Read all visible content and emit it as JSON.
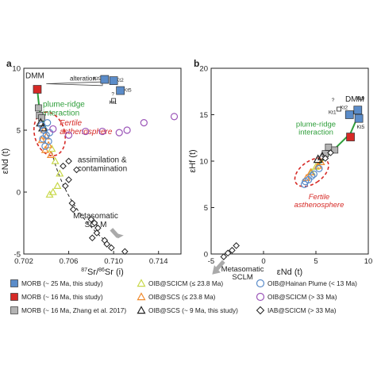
{
  "colors": {
    "morb_25": "#5b8cc9",
    "morb_16": "#d62a26",
    "morb_zhang": "#b3b3b3",
    "oib_scicm_le23": "#c8d84a",
    "oib_scs_le23": "#f08a2d",
    "oib_scs_9": "#222222",
    "oib_hainan": "#5b8cc9",
    "oib_scicm_gt33": "#9b55b8",
    "iab_scicm": "#222222",
    "fertile": "#d62a26",
    "plume": "#2e9e3a",
    "dashed_envelope": "#d62a26"
  },
  "panels": [
    {
      "tag": "a",
      "ylabel": "εNd (t)",
      "xlabel": "87Sr/86Sr (i)",
      "xticks": [
        "0.702",
        "0.706",
        "0.710",
        "0.714"
      ],
      "yticks": [
        "10",
        "5",
        "0",
        "-5"
      ],
      "annotations": {
        "dmm": "DMM",
        "alteration": "alteration",
        "plume_ridge": "plume-ridge\ninteraction",
        "fertile": "Fertile\nasthenosphere",
        "assimilation": "assimilation &\ncontamination",
        "metasomatic": "Metasomatic\nSCLM",
        "kt9": "Kt9",
        "kt2": "Kt2",
        "kt5": "Kt5",
        "kt1": "Kt1",
        "q": "?"
      }
    },
    {
      "tag": "b",
      "ylabel": "εHf (t)",
      "xlabel": "εNd (t)",
      "xticks": [
        "-5",
        "0",
        "5",
        "10"
      ],
      "yticks": [
        "20",
        "15",
        "10",
        "5",
        "0"
      ],
      "annotations": {
        "dmm": "DMM",
        "plume_ridge": "plume-ridge\ninteraction",
        "fertile": "Fertile\nasthenosphere",
        "metasomatic": "Metasomatic\nSCLM",
        "kt9": "Kt9",
        "kt2": "Kt2",
        "kt5": "Kt5",
        "kt1": "Kt1",
        "q": "?"
      }
    }
  ],
  "legend": [
    {
      "label": "MORB (~ 25 Ma, this study)",
      "marker": "square",
      "color_key": "morb_25",
      "filled": true
    },
    {
      "label": "OIB@SCICM (≤ 23.8 Ma)",
      "marker": "triangle",
      "color_key": "oib_scicm_le23",
      "filled": false
    },
    {
      "label": "OIB@Hainan Plume (< 13 Ma)",
      "marker": "circle",
      "color_key": "oib_hainan",
      "filled": false
    },
    {
      "label": "MORB (~ 16 Ma, this study)",
      "marker": "square",
      "color_key": "morb_16",
      "filled": true
    },
    {
      "label": "OIB@SCS (≤ 23.8 Ma)",
      "marker": "triangle",
      "color_key": "oib_scs_le23",
      "filled": false
    },
    {
      "label": "OIB@SCICM (> 33 Ma)",
      "marker": "circle",
      "color_key": "oib_scicm_gt33",
      "filled": false
    },
    {
      "label": "MORB (~ 16 Ma, Zhang et al. 2017)",
      "marker": "square",
      "color_key": "morb_zhang",
      "filled": true
    },
    {
      "label": "OIB@SCS (~ 9 Ma, this study)",
      "marker": "triangle",
      "color_key": "oib_scs_9",
      "filled": false
    },
    {
      "label": "IAB@SCICM (> 33 Ma)",
      "marker": "diamond",
      "color_key": "iab_scicm",
      "filled": false
    }
  ],
  "chart_data": [
    {
      "type": "scatter",
      "title": "",
      "xlabel": "87Sr/86Sr (i)",
      "ylabel": "εNd (t)",
      "xlim": [
        0.702,
        0.716
      ],
      "ylim": [
        -5,
        10
      ],
      "grid": false,
      "series": [
        {
          "name": "MORB (~ 25 Ma, this study)",
          "points": [
            [
              0.7092,
              9.1
            ],
            [
              0.71,
              9.0
            ],
            [
              0.7106,
              8.2
            ]
          ]
        },
        {
          "name": "MORB (~ 16 Ma, this study)",
          "points": [
            [
              0.7032,
              8.3
            ]
          ]
        },
        {
          "name": "MORB (~ 16 Ma, Zhang et al. 2017)",
          "points": [
            [
              0.7033,
              6.8
            ],
            [
              0.7034,
              6.2
            ],
            [
              0.7036,
              6.0
            ]
          ]
        },
        {
          "name": "OIB@SCICM (≤ 23.8 Ma)",
          "points": [
            [
              0.7045,
              3.5
            ],
            [
              0.7048,
              2.5
            ],
            [
              0.7052,
              1.5
            ],
            [
              0.705,
              0.5
            ],
            [
              0.7046,
              0.0
            ],
            [
              0.7043,
              -0.2
            ]
          ]
        },
        {
          "name": "OIB@SCS (≤ 23.8 Ma)",
          "points": [
            [
              0.7038,
              5.0
            ],
            [
              0.704,
              4.5
            ],
            [
              0.7042,
              3.8
            ],
            [
              0.7036,
              4.2
            ],
            [
              0.7044,
              3.0
            ],
            [
              0.7039,
              3.4
            ]
          ]
        },
        {
          "name": "OIB@SCS (~ 9 Ma, this study)",
          "points": [
            [
              0.7035,
              5.6
            ],
            [
              0.7037,
              5.2
            ]
          ]
        },
        {
          "name": "OIB@Hainan Plume (< 13 Ma)",
          "points": [
            [
              0.7036,
              5.4
            ],
            [
              0.7038,
              5.0
            ],
            [
              0.704,
              4.6
            ],
            [
              0.7042,
              4.1
            ],
            [
              0.7039,
              3.7
            ],
            [
              0.7043,
              4.8
            ],
            [
              0.7041,
              5.6
            ],
            [
              0.7037,
              4.3
            ]
          ]
        },
        {
          "name": "OIB@SCICM (> 33 Ma)",
          "points": [
            [
              0.7046,
              5.1
            ],
            [
              0.706,
              4.6
            ],
            [
              0.7075,
              4.9
            ],
            [
              0.709,
              4.9
            ],
            [
              0.7105,
              4.8
            ],
            [
              0.7112,
              5.0
            ],
            [
              0.7127,
              5.6
            ],
            [
              0.7154,
              6.1
            ]
          ]
        },
        {
          "name": "IAB@SCICM (> 33 Ma)",
          "points": [
            [
              0.706,
              2.5
            ],
            [
              0.7067,
              1.8
            ],
            [
              0.7055,
              2.1
            ],
            [
              0.706,
              1.0
            ],
            [
              0.7057,
              0.5
            ],
            [
              0.7063,
              -0.9
            ],
            [
              0.708,
              -2.2
            ],
            [
              0.7083,
              -2.5
            ],
            [
              0.7086,
              -2.9
            ],
            [
              0.7085,
              -3.3
            ],
            [
              0.7081,
              -3.7
            ],
            [
              0.7092,
              -3.9
            ],
            [
              0.7094,
              -4.2
            ],
            [
              0.7098,
              -4.5
            ],
            [
              0.711,
              -4.8
            ],
            [
              0.7064,
              -1.4
            ]
          ]
        }
      ]
    },
    {
      "type": "scatter",
      "title": "",
      "xlabel": "εNd (t)",
      "ylabel": "εHf (t)",
      "xlim": [
        -5,
        10
      ],
      "ylim": [
        0,
        20
      ],
      "grid": false,
      "series": [
        {
          "name": "MORB (~ 25 Ma, this study)",
          "points": [
            [
              8.2,
              15.0
            ],
            [
              9.0,
              15.5
            ],
            [
              9.1,
              14.6
            ]
          ]
        },
        {
          "name": "MORB (~ 16 Ma, this study)",
          "points": [
            [
              8.3,
              12.6
            ]
          ]
        },
        {
          "name": "MORB (~ 16 Ma, Zhang et al. 2017)",
          "points": [
            [
              6.2,
              11.5
            ],
            [
              6.8,
              11.2
            ],
            [
              5.9,
              10.8
            ]
          ]
        },
        {
          "name": "OIB@SCICM (≤ 23.8 Ma)",
          "points": [
            [
              4.6,
              8.8
            ],
            [
              5.0,
              9.4
            ]
          ]
        },
        {
          "name": "OIB@SCS (≤ 23.8 Ma)",
          "points": [
            [
              4.1,
              8.2
            ],
            [
              4.5,
              8.8
            ],
            [
              5.2,
              9.5
            ],
            [
              5.5,
              9.9
            ]
          ]
        },
        {
          "name": "OIB@SCS (~ 9 Ma, this study)",
          "points": [
            [
              5.2,
              10.2
            ],
            [
              5.6,
              10.5
            ]
          ]
        },
        {
          "name": "OIB@Hainan Plume (< 13 Ma)",
          "points": [
            [
              3.9,
              7.5
            ],
            [
              4.3,
              8.0
            ],
            [
              4.8,
              8.6
            ],
            [
              5.3,
              9.2
            ],
            [
              4.0,
              7.8
            ],
            [
              4.6,
              8.4
            ]
          ]
        },
        {
          "name": "IAB@SCICM (> 33 Ma)",
          "points": [
            [
              -3.8,
              -0.3
            ],
            [
              -3.4,
              0.1
            ],
            [
              -3.0,
              0.4
            ],
            [
              -2.6,
              0.9
            ],
            [
              5.9,
              10.3
            ],
            [
              6.4,
              10.9
            ]
          ]
        }
      ]
    }
  ]
}
